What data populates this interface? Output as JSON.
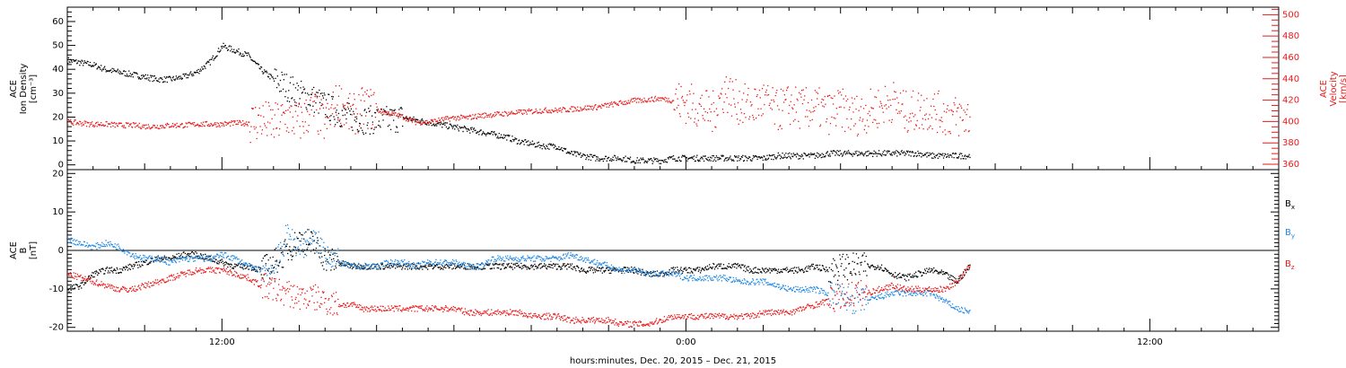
{
  "chart_data": [
    {
      "type": "scatter",
      "panel": "plasma",
      "ylabel_left": [
        "ACE",
        "Ion Density",
        "[cm⁻³]"
      ],
      "ylabel_right": [
        "ACE",
        "Velocity",
        "[km/s]"
      ],
      "ylim_left": [
        -2,
        66
      ],
      "ylim_right": [
        355,
        507
      ],
      "yticks_left": [
        "0",
        "10",
        "20",
        "30",
        "40",
        "50",
        "60"
      ],
      "yticks_right": [
        "360",
        "380",
        "400",
        "420",
        "440",
        "460",
        "480",
        "500"
      ],
      "x_hours": [
        0,
        0.5,
        1,
        1.5,
        2,
        2.5,
        3,
        3.5,
        4,
        4.5,
        5,
        5.5,
        6,
        6.5,
        7,
        7.5,
        8,
        8.5,
        9,
        9.5,
        10,
        10.5,
        11,
        11.5,
        12,
        12.5,
        13,
        13.5,
        14,
        14.5,
        15,
        15.5,
        16,
        16.5,
        17,
        17.5,
        18,
        18.5,
        19,
        19.5,
        20,
        20.5,
        21,
        21.5,
        22,
        22.5,
        23,
        23.5,
        24,
        24.5,
        25,
        25.5,
        26,
        26.5,
        27,
        27.5,
        28,
        28.5,
        29,
        29.5,
        30,
        30.5,
        31,
        31.5,
        32,
        32.5,
        33,
        33.5,
        34,
        34.5,
        35
      ],
      "series": [
        {
          "color": "#000000",
          "axis": "left",
          "values": [
            44,
            43,
            42,
            40,
            39,
            38,
            37,
            36,
            36,
            37,
            39,
            43,
            50,
            48,
            46,
            40,
            36,
            33,
            30,
            28,
            25,
            22,
            20,
            19,
            19,
            19,
            20,
            19,
            18,
            17,
            16,
            15,
            14,
            13,
            12,
            10,
            9,
            8,
            8,
            5,
            4,
            3,
            3,
            3,
            2,
            2,
            2,
            3,
            3,
            3,
            3,
            3,
            3,
            3,
            3,
            4,
            4,
            4,
            4,
            5,
            5,
            5,
            5,
            5,
            5,
            5,
            5,
            4,
            4,
            4,
            4
          ]
        },
        {
          "color": "#e8191a",
          "axis": "right",
          "values": [
            400,
            399,
            398,
            398,
            397,
            397,
            396,
            396,
            397,
            397,
            398,
            398,
            398,
            399,
            399,
            402,
            398,
            405,
            400,
            412,
            398,
            420,
            405,
            414,
            411,
            408,
            405,
            400,
            400,
            402,
            404,
            404,
            406,
            407,
            408,
            409,
            410,
            411,
            411,
            412,
            413,
            414,
            416,
            418,
            420,
            421,
            422,
            420,
            418,
            414,
            408,
            430,
            418,
            414,
            420,
            410,
            416,
            412,
            414,
            408,
            412,
            406,
            410,
            414,
            420,
            409,
            411,
            412,
            407,
            405,
            404
          ]
        }
      ]
    },
    {
      "type": "scatter",
      "panel": "magnetic",
      "ylabel": [
        "ACE",
        "B",
        "[nT]"
      ],
      "ylim": [
        -21,
        21
      ],
      "yticks": [
        "-20",
        "-10",
        "0",
        "10",
        "20"
      ],
      "x_hours": [
        0,
        0.5,
        1,
        1.5,
        2,
        2.5,
        3,
        3.5,
        4,
        4.5,
        5,
        5.5,
        6,
        6.5,
        7,
        7.5,
        8,
        8.5,
        9,
        9.5,
        10,
        10.5,
        11,
        11.5,
        12,
        12.5,
        13,
        13.5,
        14,
        14.5,
        15,
        15.5,
        16,
        16.5,
        17,
        17.5,
        18,
        18.5,
        19,
        19.5,
        20,
        20.5,
        21,
        21.5,
        22,
        22.5,
        23,
        23.5,
        24,
        24.5,
        25,
        25.5,
        26,
        26.5,
        27,
        27.5,
        28,
        28.5,
        29,
        29.5,
        30,
        30.5,
        31,
        31.5,
        32,
        32.5,
        33,
        33.5,
        34,
        34.5,
        35
      ],
      "series": [
        {
          "name": "Bx",
          "color": "#000000",
          "values": [
            -10,
            -9,
            -6,
            -5,
            -5,
            -4,
            -3,
            -2,
            -2,
            -1,
            -1,
            -2,
            -3,
            -4,
            -4,
            -5,
            -3,
            0,
            3,
            2,
            -2,
            -3,
            -4,
            -4,
            -4,
            -4,
            -4,
            -4,
            -4,
            -4,
            -4,
            -4,
            -4,
            -4,
            -4,
            -4,
            -4,
            -4,
            -4,
            -4,
            -5,
            -5,
            -5,
            -5,
            -5,
            -6,
            -6,
            -5,
            -5,
            -5,
            -4,
            -4,
            -4,
            -5,
            -5,
            -5,
            -5,
            -5,
            -4,
            -5,
            -4,
            -4,
            -4,
            -4,
            -6,
            -7,
            -6,
            -5,
            -6,
            -8,
            -4
          ]
        },
        {
          "name": "By",
          "color": "#1e88e5",
          "values": [
            3,
            2,
            1,
            2,
            1,
            -1,
            -2,
            -2,
            -3,
            -2,
            -2,
            -2,
            -1,
            -2,
            -4,
            -5,
            -5,
            4,
            1,
            3,
            0,
            -3,
            -4,
            -4,
            -4,
            -3,
            -3,
            -4,
            -3,
            -3,
            -3,
            -4,
            -4,
            -2,
            -2,
            -2,
            -2,
            -2,
            -2,
            -1,
            -2,
            -3,
            -4,
            -5,
            -5,
            -6,
            -6,
            -6,
            -7,
            -7,
            -7,
            -7,
            -8,
            -8,
            -8,
            -9,
            -10,
            -10,
            -10,
            -11,
            -12,
            -13,
            -13,
            -12,
            -11,
            -11,
            -11,
            -11,
            -13,
            -15,
            -16
          ]
        },
        {
          "name": "Bz",
          "color": "#e8191a",
          "values": [
            -6,
            -7,
            -8,
            -9,
            -10,
            -10,
            -9,
            -8,
            -7,
            -6,
            -5,
            -5,
            -5,
            -6,
            -7,
            -9,
            -10,
            -11,
            -12,
            -12,
            -13,
            -14,
            -14,
            -15,
            -15,
            -15,
            -15,
            -15,
            -15,
            -15,
            -15,
            -16,
            -16,
            -16,
            -16,
            -16,
            -17,
            -17,
            -17,
            -18,
            -18,
            -18,
            -18,
            -19,
            -19,
            -19,
            -18,
            -17,
            -17,
            -17,
            -17,
            -17,
            -17,
            -17,
            -16,
            -16,
            -16,
            -15,
            -14,
            -13,
            -12,
            -11,
            -11,
            -10,
            -9,
            -10,
            -10,
            -10,
            -10,
            -8,
            -4
          ]
        }
      ],
      "legend": [
        "B",
        "B",
        "B"
      ],
      "legend_subscripts": [
        "x",
        "y",
        "z"
      ],
      "legend_placement": "right"
    }
  ],
  "x_axis": {
    "tick_labels": [
      "12:00",
      "0:00",
      "12:00"
    ],
    "tick_hours": [
      6,
      24,
      42
    ],
    "xlim_hours": [
      0,
      47
    ],
    "data_end_hour": 35,
    "xlabel": "hours:minutes, Dec. 20, 2015 – Dec. 21, 2015"
  },
  "colors": {
    "black": "#000000",
    "red": "#e8191a",
    "blue": "#1e88e5"
  }
}
